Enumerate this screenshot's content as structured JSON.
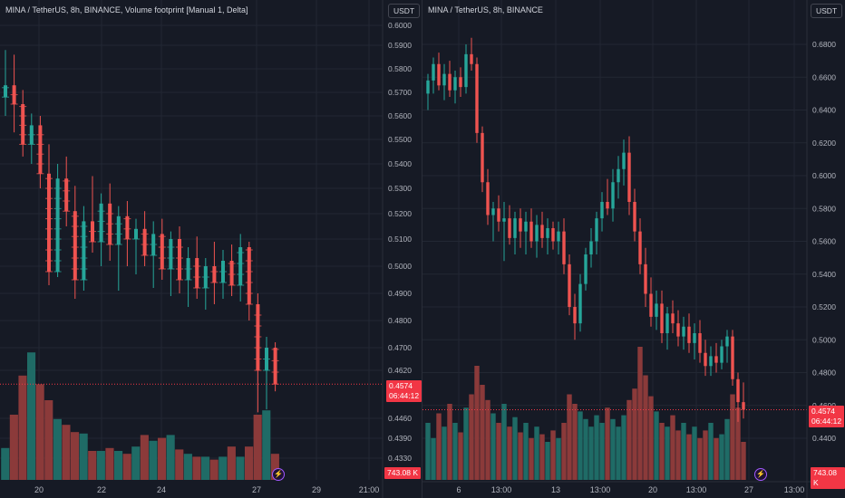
{
  "left": {
    "title": "MINA / TetherUS, 8h, BINANCE, Volume footprint [Manual 1, Delta]",
    "currency": "USDT",
    "price_tag": "0.4574",
    "countdown": "06:44:12",
    "volume_tag": "743.08 K"
  },
  "right": {
    "title": "MINA / TetherUS, 8h, BINANCE",
    "currency": "USDT",
    "price_tag": "0.4574",
    "countdown": "06:44:12",
    "volume_tag": "743.08 K"
  },
  "colors": {
    "up": "#26a69a",
    "down": "#ef5350",
    "up_vol": "#1f6b66",
    "down_vol": "#8b3a3a",
    "bg": "#161a25",
    "grid": "#222733",
    "axis_text": "#b2b5be",
    "last_price": "#f23645"
  },
  "chart_data": [
    {
      "type": "candlestick",
      "title": "MINA / TetherUS, 8h, BINANCE, Volume footprint [Manual 1, Delta]",
      "y_ticks": [
        0.6,
        0.59,
        0.58,
        0.57,
        0.56,
        0.55,
        0.54,
        0.53,
        0.52,
        0.51,
        0.5,
        0.49,
        0.48,
        0.47,
        0.462,
        0.446,
        0.439,
        0.433
      ],
      "y_tick_labels": [
        "0.6000",
        "0.5900",
        "0.5800",
        "0.5700",
        "0.5600",
        "0.5500",
        "0.5400",
        "0.5300",
        "0.5200",
        "0.5100",
        "0.5000",
        "0.4900",
        "0.4800",
        "0.4700",
        "0.4620",
        "0.4460",
        "0.4390",
        "0.4330"
      ],
      "x_tick_labels": [
        "20",
        "22",
        "24",
        "27",
        "29",
        "21:00"
      ],
      "last_price": 0.4574,
      "candles": [
        {
          "o": 0.568,
          "h": 0.588,
          "l": 0.56,
          "c": 0.573
        },
        {
          "o": 0.573,
          "h": 0.586,
          "l": 0.553,
          "c": 0.565
        },
        {
          "o": 0.565,
          "h": 0.571,
          "l": 0.543,
          "c": 0.548
        },
        {
          "o": 0.548,
          "h": 0.561,
          "l": 0.54,
          "c": 0.556
        },
        {
          "o": 0.556,
          "h": 0.56,
          "l": 0.53,
          "c": 0.536
        },
        {
          "o": 0.536,
          "h": 0.548,
          "l": 0.493,
          "c": 0.498
        },
        {
          "o": 0.498,
          "h": 0.54,
          "l": 0.496,
          "c": 0.534
        },
        {
          "o": 0.534,
          "h": 0.543,
          "l": 0.515,
          "c": 0.521
        },
        {
          "o": 0.521,
          "h": 0.531,
          "l": 0.488,
          "c": 0.495
        },
        {
          "o": 0.495,
          "h": 0.523,
          "l": 0.491,
          "c": 0.517
        },
        {
          "o": 0.517,
          "h": 0.535,
          "l": 0.505,
          "c": 0.509
        },
        {
          "o": 0.509,
          "h": 0.528,
          "l": 0.5,
          "c": 0.524
        },
        {
          "o": 0.524,
          "h": 0.532,
          "l": 0.502,
          "c": 0.508
        },
        {
          "o": 0.508,
          "h": 0.523,
          "l": 0.491,
          "c": 0.519
        },
        {
          "o": 0.519,
          "h": 0.525,
          "l": 0.5,
          "c": 0.51
        },
        {
          "o": 0.51,
          "h": 0.518,
          "l": 0.497,
          "c": 0.514
        },
        {
          "o": 0.514,
          "h": 0.521,
          "l": 0.5,
          "c": 0.504
        },
        {
          "o": 0.504,
          "h": 0.517,
          "l": 0.492,
          "c": 0.512
        },
        {
          "o": 0.512,
          "h": 0.518,
          "l": 0.495,
          "c": 0.499
        },
        {
          "o": 0.499,
          "h": 0.513,
          "l": 0.489,
          "c": 0.51
        },
        {
          "o": 0.51,
          "h": 0.515,
          "l": 0.49,
          "c": 0.495
        },
        {
          "o": 0.495,
          "h": 0.507,
          "l": 0.485,
          "c": 0.503
        },
        {
          "o": 0.503,
          "h": 0.511,
          "l": 0.488,
          "c": 0.492
        },
        {
          "o": 0.492,
          "h": 0.503,
          "l": 0.484,
          "c": 0.5
        },
        {
          "o": 0.5,
          "h": 0.509,
          "l": 0.486,
          "c": 0.494
        },
        {
          "o": 0.494,
          "h": 0.506,
          "l": 0.488,
          "c": 0.502
        },
        {
          "o": 0.502,
          "h": 0.508,
          "l": 0.489,
          "c": 0.493
        },
        {
          "o": 0.493,
          "h": 0.512,
          "l": 0.487,
          "c": 0.507
        },
        {
          "o": 0.507,
          "h": 0.509,
          "l": 0.48,
          "c": 0.486
        },
        {
          "o": 0.486,
          "h": 0.49,
          "l": 0.448,
          "c": 0.462
        },
        {
          "o": 0.462,
          "h": 0.474,
          "l": 0.449,
          "c": 0.47
        },
        {
          "o": 0.47,
          "h": 0.472,
          "l": 0.455,
          "c": 0.4574
        }
      ],
      "volume": [
        0.22,
        0.45,
        0.72,
        0.88,
        0.66,
        0.55,
        0.42,
        0.38,
        0.33,
        0.32,
        0.2,
        0.2,
        0.22,
        0.2,
        0.18,
        0.23,
        0.31,
        0.27,
        0.29,
        0.31,
        0.21,
        0.18,
        0.16,
        0.16,
        0.14,
        0.16,
        0.23,
        0.16,
        0.23,
        0.45,
        0.48,
        0.18
      ]
    },
    {
      "type": "candlestick",
      "title": "MINA / TetherUS, 8h, BINANCE",
      "y_ticks": [
        0.68,
        0.66,
        0.64,
        0.62,
        0.6,
        0.58,
        0.56,
        0.54,
        0.52,
        0.5,
        0.48,
        0.46,
        0.44
      ],
      "y_tick_labels": [
        "0.6800",
        "0.6600",
        "0.6400",
        "0.6200",
        "0.6000",
        "0.5800",
        "0.5600",
        "0.5400",
        "0.5200",
        "0.5000",
        "0.4800",
        "0.4600",
        "0.4400"
      ],
      "x_tick_labels": [
        "6",
        "13:00",
        "13",
        "13:00",
        "20",
        "13:00",
        "27",
        "13:00"
      ],
      "last_price": 0.4574,
      "candles": [
        {
          "o": 0.65,
          "h": 0.662,
          "l": 0.64,
          "c": 0.658
        },
        {
          "o": 0.658,
          "h": 0.672,
          "l": 0.65,
          "c": 0.668
        },
        {
          "o": 0.668,
          "h": 0.675,
          "l": 0.652,
          "c": 0.655
        },
        {
          "o": 0.655,
          "h": 0.668,
          "l": 0.646,
          "c": 0.662
        },
        {
          "o": 0.662,
          "h": 0.67,
          "l": 0.648,
          "c": 0.652
        },
        {
          "o": 0.652,
          "h": 0.664,
          "l": 0.644,
          "c": 0.66
        },
        {
          "o": 0.66,
          "h": 0.666,
          "l": 0.648,
          "c": 0.654
        },
        {
          "o": 0.654,
          "h": 0.68,
          "l": 0.65,
          "c": 0.674
        },
        {
          "o": 0.674,
          "h": 0.684,
          "l": 0.664,
          "c": 0.668
        },
        {
          "o": 0.668,
          "h": 0.672,
          "l": 0.62,
          "c": 0.626
        },
        {
          "o": 0.626,
          "h": 0.63,
          "l": 0.59,
          "c": 0.596
        },
        {
          "o": 0.596,
          "h": 0.604,
          "l": 0.57,
          "c": 0.576
        },
        {
          "o": 0.576,
          "h": 0.584,
          "l": 0.56,
          "c": 0.58
        },
        {
          "o": 0.58,
          "h": 0.588,
          "l": 0.566,
          "c": 0.572
        },
        {
          "o": 0.572,
          "h": 0.584,
          "l": 0.548,
          "c": 0.574
        },
        {
          "o": 0.574,
          "h": 0.582,
          "l": 0.558,
          "c": 0.562
        },
        {
          "o": 0.562,
          "h": 0.578,
          "l": 0.552,
          "c": 0.574
        },
        {
          "o": 0.574,
          "h": 0.58,
          "l": 0.556,
          "c": 0.566
        },
        {
          "o": 0.566,
          "h": 0.578,
          "l": 0.552,
          "c": 0.572
        },
        {
          "o": 0.572,
          "h": 0.58,
          "l": 0.556,
          "c": 0.56
        },
        {
          "o": 0.56,
          "h": 0.576,
          "l": 0.55,
          "c": 0.57
        },
        {
          "o": 0.57,
          "h": 0.578,
          "l": 0.556,
          "c": 0.562
        },
        {
          "o": 0.562,
          "h": 0.574,
          "l": 0.552,
          "c": 0.568
        },
        {
          "o": 0.568,
          "h": 0.572,
          "l": 0.555,
          "c": 0.56
        },
        {
          "o": 0.56,
          "h": 0.572,
          "l": 0.552,
          "c": 0.566
        },
        {
          "o": 0.566,
          "h": 0.574,
          "l": 0.54,
          "c": 0.546
        },
        {
          "o": 0.546,
          "h": 0.552,
          "l": 0.515,
          "c": 0.52
        },
        {
          "o": 0.52,
          "h": 0.528,
          "l": 0.5,
          "c": 0.51
        },
        {
          "o": 0.51,
          "h": 0.54,
          "l": 0.505,
          "c": 0.534
        },
        {
          "o": 0.534,
          "h": 0.556,
          "l": 0.53,
          "c": 0.552
        },
        {
          "o": 0.552,
          "h": 0.568,
          "l": 0.544,
          "c": 0.56
        },
        {
          "o": 0.56,
          "h": 0.578,
          "l": 0.552,
          "c": 0.574
        },
        {
          "o": 0.574,
          "h": 0.59,
          "l": 0.566,
          "c": 0.584
        },
        {
          "o": 0.584,
          "h": 0.598,
          "l": 0.576,
          "c": 0.58
        },
        {
          "o": 0.58,
          "h": 0.604,
          "l": 0.572,
          "c": 0.596
        },
        {
          "o": 0.596,
          "h": 0.612,
          "l": 0.586,
          "c": 0.604
        },
        {
          "o": 0.604,
          "h": 0.622,
          "l": 0.594,
          "c": 0.614
        },
        {
          "o": 0.614,
          "h": 0.624,
          "l": 0.576,
          "c": 0.584
        },
        {
          "o": 0.584,
          "h": 0.592,
          "l": 0.56,
          "c": 0.566
        },
        {
          "o": 0.566,
          "h": 0.574,
          "l": 0.54,
          "c": 0.546
        },
        {
          "o": 0.546,
          "h": 0.556,
          "l": 0.52,
          "c": 0.528
        },
        {
          "o": 0.528,
          "h": 0.538,
          "l": 0.508,
          "c": 0.514
        },
        {
          "o": 0.514,
          "h": 0.53,
          "l": 0.506,
          "c": 0.522
        },
        {
          "o": 0.522,
          "h": 0.53,
          "l": 0.498,
          "c": 0.504
        },
        {
          "o": 0.504,
          "h": 0.52,
          "l": 0.494,
          "c": 0.516
        },
        {
          "o": 0.516,
          "h": 0.524,
          "l": 0.504,
          "c": 0.51
        },
        {
          "o": 0.51,
          "h": 0.518,
          "l": 0.496,
          "c": 0.502
        },
        {
          "o": 0.502,
          "h": 0.514,
          "l": 0.494,
          "c": 0.508
        },
        {
          "o": 0.508,
          "h": 0.516,
          "l": 0.492,
          "c": 0.498
        },
        {
          "o": 0.498,
          "h": 0.51,
          "l": 0.488,
          "c": 0.504
        },
        {
          "o": 0.504,
          "h": 0.512,
          "l": 0.486,
          "c": 0.492
        },
        {
          "o": 0.492,
          "h": 0.5,
          "l": 0.478,
          "c": 0.484
        },
        {
          "o": 0.484,
          "h": 0.496,
          "l": 0.478,
          "c": 0.49
        },
        {
          "o": 0.49,
          "h": 0.498,
          "l": 0.48,
          "c": 0.486
        },
        {
          "o": 0.486,
          "h": 0.5,
          "l": 0.482,
          "c": 0.496
        },
        {
          "o": 0.496,
          "h": 0.506,
          "l": 0.486,
          "c": 0.502
        },
        {
          "o": 0.502,
          "h": 0.506,
          "l": 0.472,
          "c": 0.476
        },
        {
          "o": 0.476,
          "h": 0.48,
          "l": 0.45,
          "c": 0.462
        },
        {
          "o": 0.462,
          "h": 0.474,
          "l": 0.452,
          "c": 0.4574
        }
      ],
      "volume": [
        0.3,
        0.22,
        0.35,
        0.28,
        0.4,
        0.3,
        0.25,
        0.38,
        0.45,
        0.6,
        0.5,
        0.42,
        0.35,
        0.3,
        0.4,
        0.28,
        0.33,
        0.25,
        0.3,
        0.22,
        0.28,
        0.24,
        0.2,
        0.26,
        0.22,
        0.3,
        0.45,
        0.4,
        0.36,
        0.32,
        0.28,
        0.34,
        0.3,
        0.38,
        0.32,
        0.28,
        0.34,
        0.42,
        0.48,
        0.7,
        0.55,
        0.44,
        0.36,
        0.3,
        0.28,
        0.34,
        0.26,
        0.3,
        0.24,
        0.28,
        0.22,
        0.26,
        0.3,
        0.22,
        0.24,
        0.32,
        0.45,
        0.38,
        0.2
      ]
    }
  ]
}
